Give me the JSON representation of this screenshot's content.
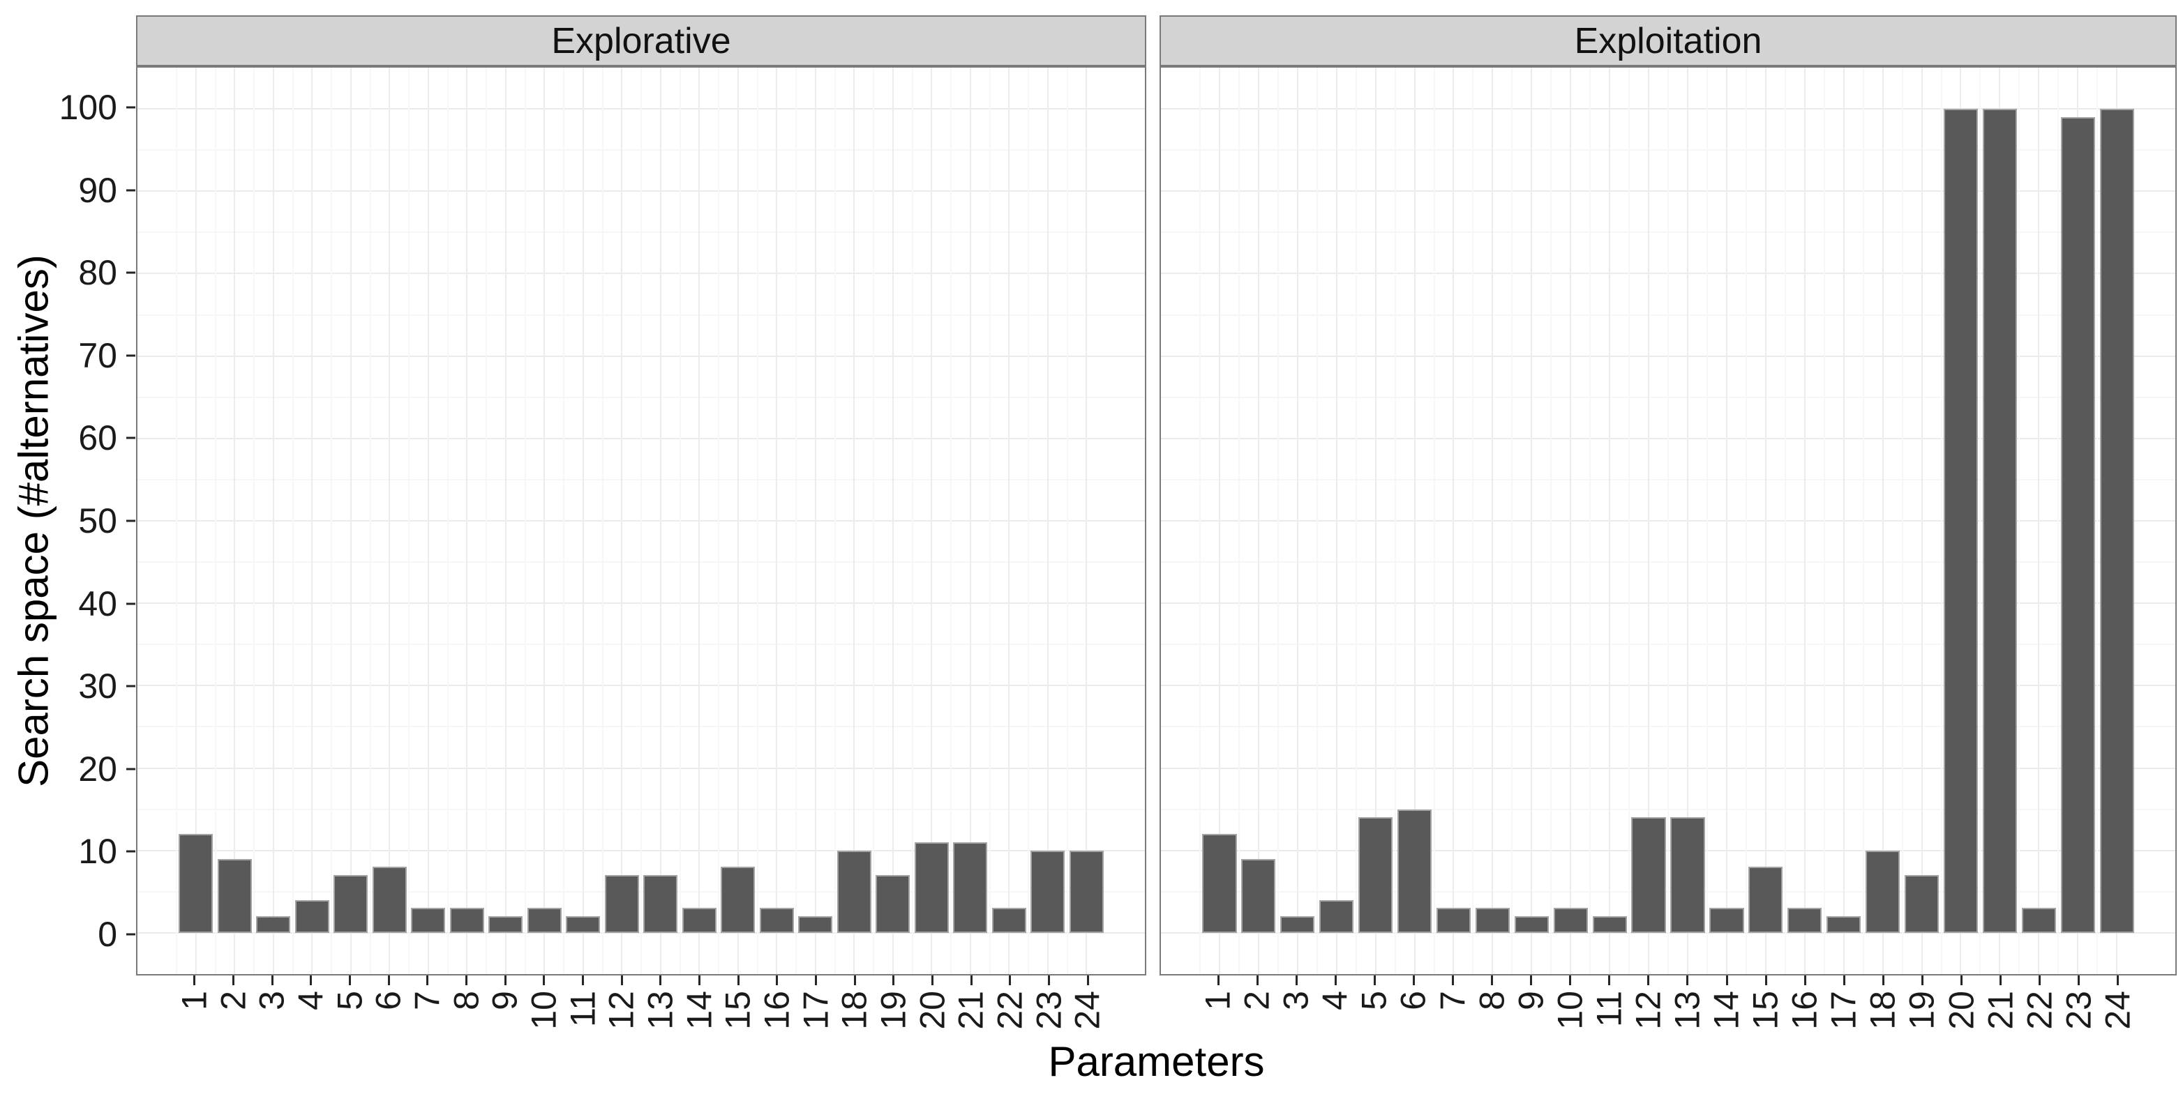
{
  "chart_data": {
    "type": "bar",
    "title": "",
    "xlabel": "Parameters",
    "ylabel": "Search space (#alternatives)",
    "categories": [
      "1",
      "2",
      "3",
      "4",
      "5",
      "6",
      "7",
      "8",
      "9",
      "10",
      "11",
      "12",
      "13",
      "14",
      "15",
      "16",
      "17",
      "18",
      "19",
      "20",
      "21",
      "22",
      "23",
      "24"
    ],
    "facets": [
      {
        "label": "Explorative",
        "values": [
          12,
          9,
          2,
          4,
          7,
          8,
          3,
          3,
          2,
          3,
          2,
          7,
          7,
          3,
          8,
          3,
          2,
          10,
          7,
          11,
          11,
          3,
          10,
          10
        ]
      },
      {
        "label": "Exploitation",
        "values": [
          12,
          9,
          2,
          4,
          14,
          15,
          3,
          3,
          2,
          3,
          2,
          14,
          14,
          3,
          8,
          3,
          2,
          10,
          7,
          100,
          100,
          3,
          99,
          100
        ]
      }
    ],
    "ylim": [
      0,
      100
    ],
    "y_major_ticks": [
      0,
      10,
      20,
      30,
      40,
      50,
      60,
      70,
      80,
      90,
      100
    ],
    "y_minor_step": 5,
    "y_expansion": 5,
    "grid": "major and minor, light gray, theme_bw style",
    "legend": "none",
    "colors": {
      "bar_fill": "#595959",
      "bar_outline": "#a3a3a3",
      "strip_fill": "#d3d3d3",
      "panel_border": "#7a7a7a",
      "grid_major": "#ebebeb",
      "grid_minor": "#f6f6f6",
      "tick": "#262626",
      "text": "#1a1a1a"
    }
  }
}
